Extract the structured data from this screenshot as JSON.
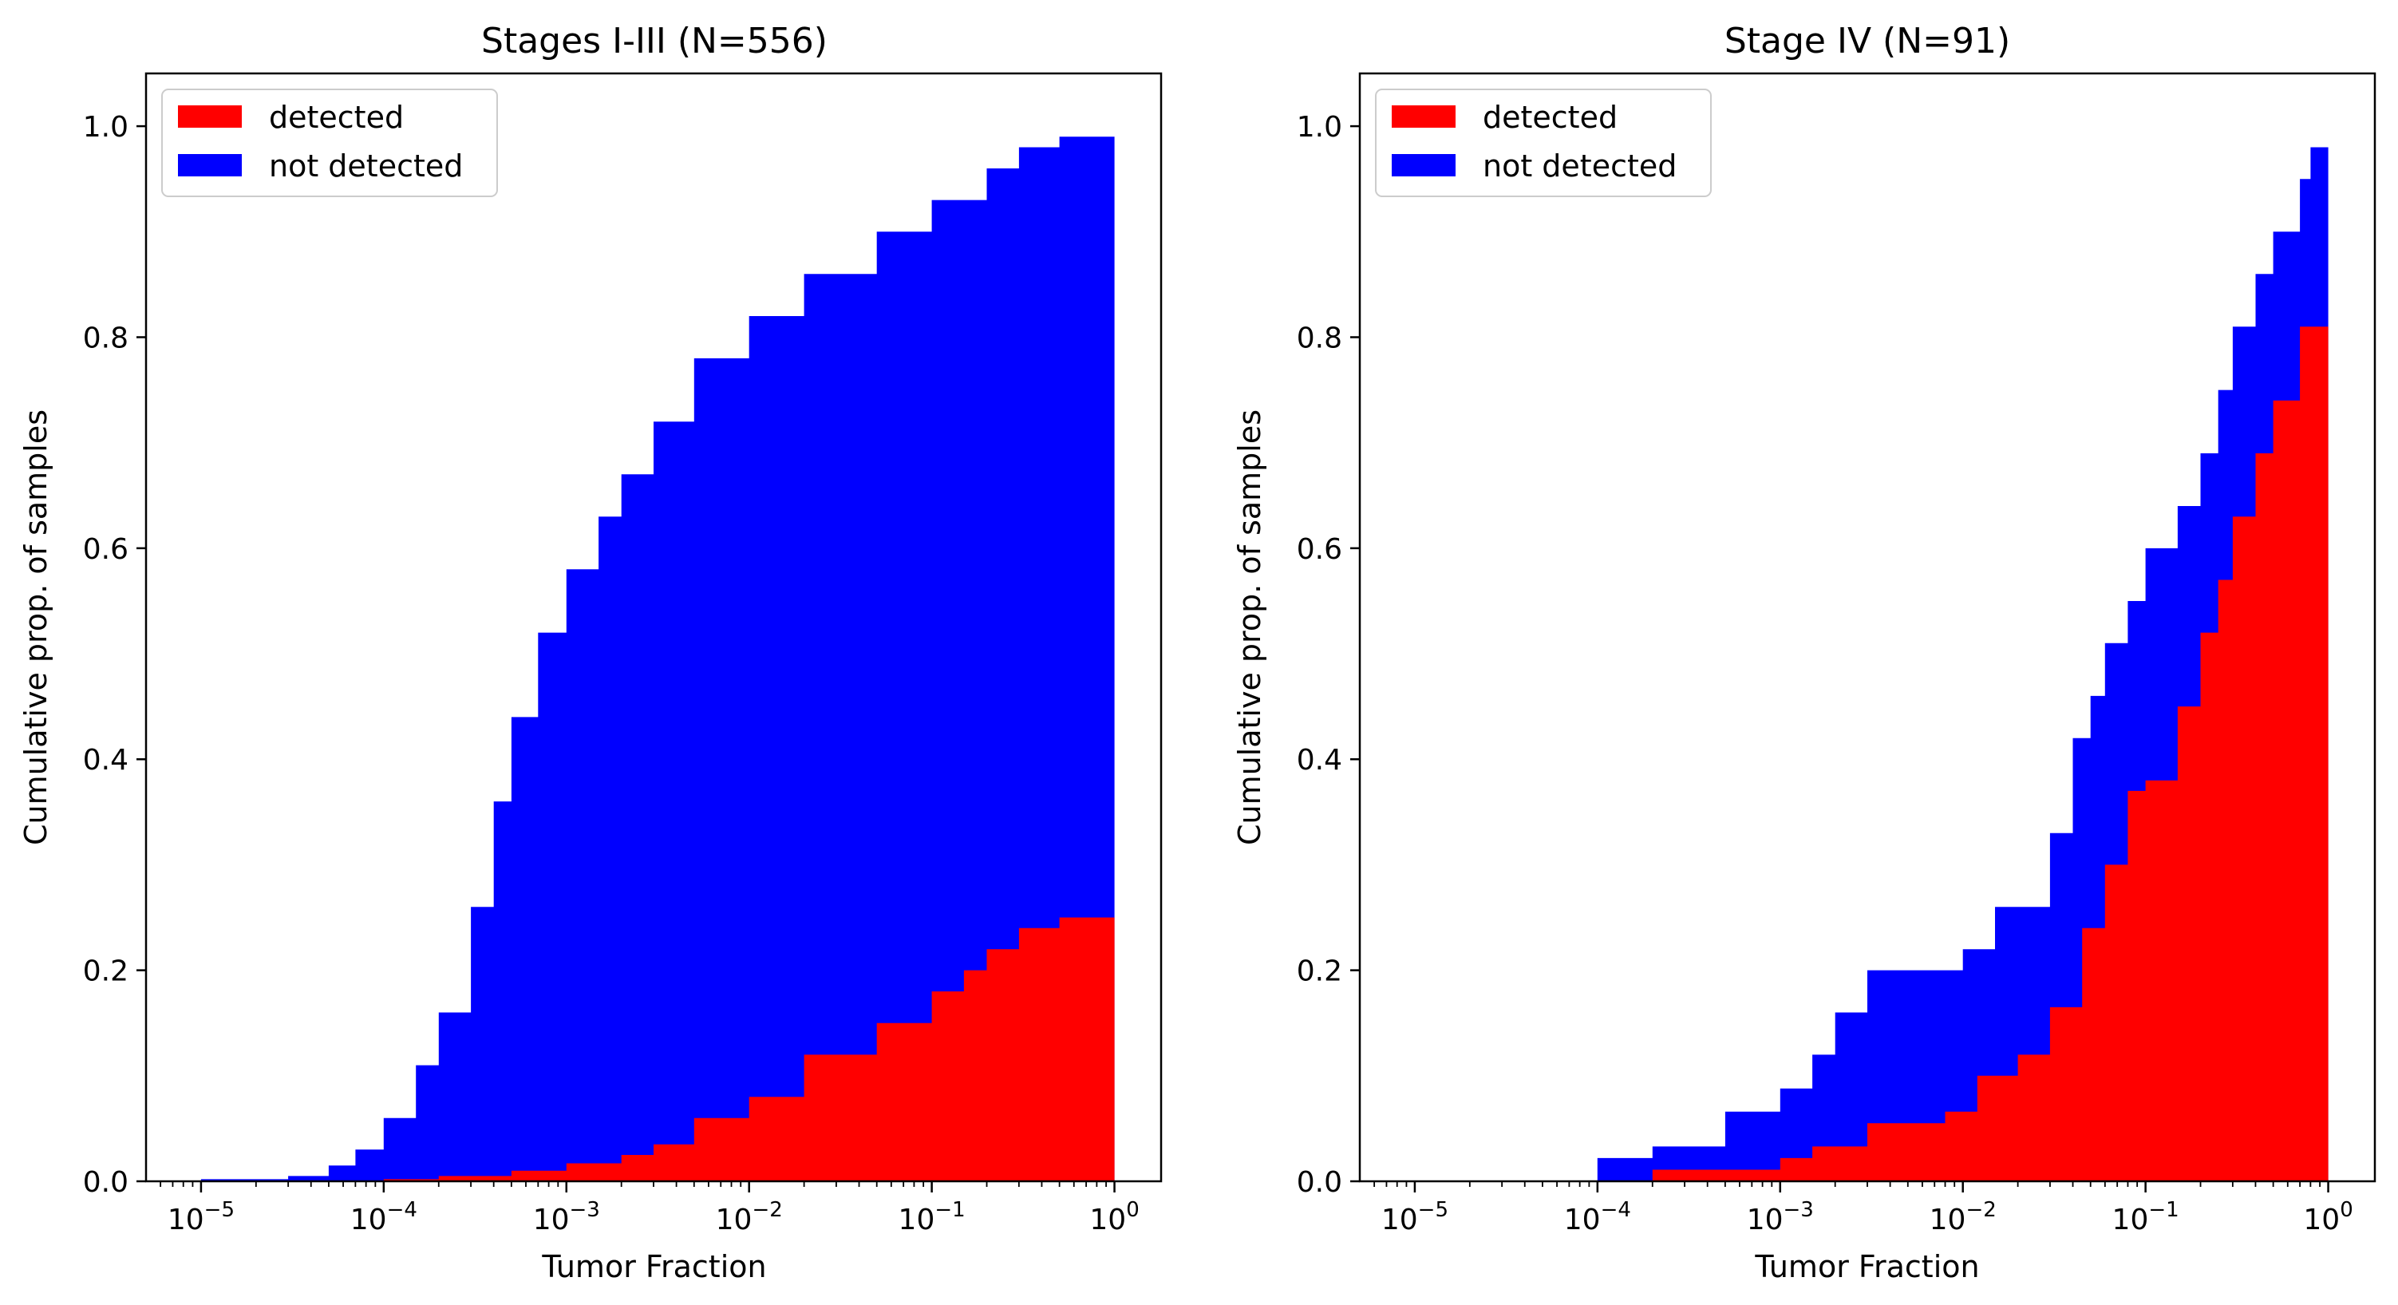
{
  "chart_data": [
    {
      "type": "area",
      "subtype": "stacked cumulative step histogram",
      "title": "Stages I-III (N=556)",
      "xlabel": "Tumor Fraction",
      "ylabel": "Cumulative prop. of samples",
      "xscale": "log",
      "xlim": [
        5e-06,
        1.8
      ],
      "ylim": [
        0,
        1.05
      ],
      "xticks": [
        {
          "base": "10",
          "exp": "−5"
        },
        {
          "base": "10",
          "exp": "−4"
        },
        {
          "base": "10",
          "exp": "−3"
        },
        {
          "base": "10",
          "exp": "−2"
        },
        {
          "base": "10",
          "exp": "−1"
        },
        {
          "base": "10",
          "exp": "0"
        }
      ],
      "yticks": [
        "0.0",
        "0.2",
        "0.4",
        "0.6",
        "0.8",
        "1.0"
      ],
      "legend_position": "top-left",
      "grid": false,
      "series": [
        {
          "name": "detected",
          "color": "#ff0000",
          "x": [
            1e-05,
            0.0001,
            0.0002,
            0.0005,
            0.001,
            0.002,
            0.003,
            0.005,
            0.01,
            0.02,
            0.05,
            0.1,
            0.15,
            0.2,
            0.3,
            0.5,
            1.0
          ],
          "y": [
            0.0,
            0.002,
            0.005,
            0.01,
            0.017,
            0.025,
            0.035,
            0.06,
            0.08,
            0.12,
            0.15,
            0.18,
            0.2,
            0.22,
            0.24,
            0.25,
            0.258
          ]
        },
        {
          "name": "not detected",
          "color": "#0000ff",
          "x": [
            1e-05,
            3e-05,
            5e-05,
            7e-05,
            0.0001,
            0.00015,
            0.0002,
            0.0003,
            0.0004,
            0.0005,
            0.0007,
            0.001,
            0.0015,
            0.002,
            0.003,
            0.005,
            0.01,
            0.02,
            0.05,
            0.1,
            0.2,
            0.3,
            0.5,
            1.0
          ],
          "y": [
            0.002,
            0.005,
            0.015,
            0.03,
            0.06,
            0.11,
            0.16,
            0.26,
            0.36,
            0.44,
            0.52,
            0.58,
            0.63,
            0.67,
            0.72,
            0.78,
            0.82,
            0.86,
            0.9,
            0.93,
            0.96,
            0.98,
            0.99,
            1.0
          ]
        }
      ]
    },
    {
      "type": "area",
      "subtype": "stacked cumulative step histogram",
      "title": "Stage IV (N=91)",
      "xlabel": "Tumor Fraction",
      "ylabel": "Cumulative prop. of samples",
      "xscale": "log",
      "xlim": [
        5e-06,
        1.8
      ],
      "ylim": [
        0,
        1.05
      ],
      "xticks": [
        {
          "base": "10",
          "exp": "−5"
        },
        {
          "base": "10",
          "exp": "−4"
        },
        {
          "base": "10",
          "exp": "−3"
        },
        {
          "base": "10",
          "exp": "−2"
        },
        {
          "base": "10",
          "exp": "−1"
        },
        {
          "base": "10",
          "exp": "0"
        }
      ],
      "yticks": [
        "0.0",
        "0.2",
        "0.4",
        "0.6",
        "0.8",
        "1.0"
      ],
      "legend_position": "top-left",
      "grid": false,
      "series": [
        {
          "name": "detected",
          "color": "#ff0000",
          "x": [
            0.0002,
            0.001,
            0.0015,
            0.003,
            0.008,
            0.012,
            0.02,
            0.03,
            0.045,
            0.06,
            0.08,
            0.1,
            0.15,
            0.2,
            0.25,
            0.3,
            0.4,
            0.5,
            0.7,
            1.0
          ],
          "y": [
            0.011,
            0.022,
            0.033,
            0.055,
            0.066,
            0.1,
            0.12,
            0.165,
            0.24,
            0.3,
            0.37,
            0.38,
            0.45,
            0.52,
            0.57,
            0.63,
            0.69,
            0.74,
            0.81,
            0.83
          ]
        },
        {
          "name": "not detected",
          "color": "#0000ff",
          "x": [
            0.0001,
            0.0002,
            0.0005,
            0.001,
            0.0015,
            0.002,
            0.003,
            0.01,
            0.015,
            0.03,
            0.04,
            0.05,
            0.06,
            0.08,
            0.1,
            0.15,
            0.2,
            0.25,
            0.3,
            0.4,
            0.5,
            0.7,
            0.8,
            1.0
          ],
          "y": [
            0.022,
            0.033,
            0.066,
            0.088,
            0.12,
            0.16,
            0.2,
            0.22,
            0.26,
            0.33,
            0.42,
            0.46,
            0.51,
            0.55,
            0.6,
            0.64,
            0.69,
            0.75,
            0.81,
            0.86,
            0.9,
            0.95,
            0.98,
            1.0
          ]
        }
      ]
    }
  ]
}
